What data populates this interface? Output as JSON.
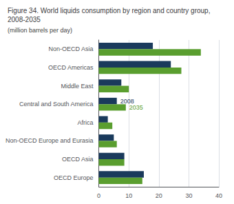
{
  "chart_data": {
    "type": "bar",
    "orientation": "horizontal",
    "title": "Figure 34. World liquids consumption by region and country group,\n2008-2035",
    "subtitle": "(million barrels per day)",
    "categories": [
      "Non-OECD Asia",
      "OECD Americas",
      "Middle East",
      "Central and South America",
      "Africa",
      "Non-OECD Europe and Eurasia",
      "OECD Asia",
      "OECD Europe"
    ],
    "series": [
      {
        "name": "2008",
        "color": "#1a3a5c",
        "values": [
          18,
          24,
          7.5,
          6,
          3,
          5,
          8.5,
          15
        ]
      },
      {
        "name": "2035",
        "color": "#5a9e2f",
        "values": [
          34,
          27.5,
          10,
          9,
          4.5,
          6,
          8.5,
          14.5
        ]
      }
    ],
    "xlim": [
      0,
      40
    ],
    "xticks": [
      0,
      10,
      20,
      30,
      40
    ],
    "grid": true,
    "annotations": [
      {
        "text": "2008",
        "series": "2008",
        "category": "Central and South America"
      },
      {
        "text": "2035",
        "series": "2035",
        "category": "Central and South America"
      }
    ]
  }
}
